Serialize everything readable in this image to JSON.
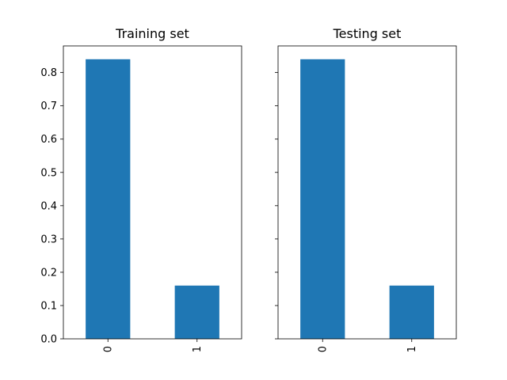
{
  "colors": {
    "bar": "#1f77b4",
    "axis": "#000000",
    "background": "#ffffff"
  },
  "chart_data": [
    {
      "type": "bar",
      "title": "Training set",
      "categories": [
        "0",
        "1"
      ],
      "values": [
        0.84,
        0.16
      ],
      "xlabel": "",
      "ylabel": "",
      "ylim": [
        0,
        0.88
      ],
      "yticks": [
        "0.0",
        "0.1",
        "0.2",
        "0.3",
        "0.4",
        "0.5",
        "0.6",
        "0.7",
        "0.8"
      ],
      "xtick_rotation": "vertical",
      "grid": false
    },
    {
      "type": "bar",
      "title": "Testing set",
      "categories": [
        "0",
        "1"
      ],
      "values": [
        0.84,
        0.16
      ],
      "xlabel": "",
      "ylabel": "",
      "ylim": [
        0,
        0.88
      ],
      "yticks": [
        "0.0",
        "0.1",
        "0.2",
        "0.3",
        "0.4",
        "0.5",
        "0.6",
        "0.7",
        "0.8"
      ],
      "ytick_labels_shown": false,
      "xtick_rotation": "vertical",
      "grid": false
    }
  ]
}
